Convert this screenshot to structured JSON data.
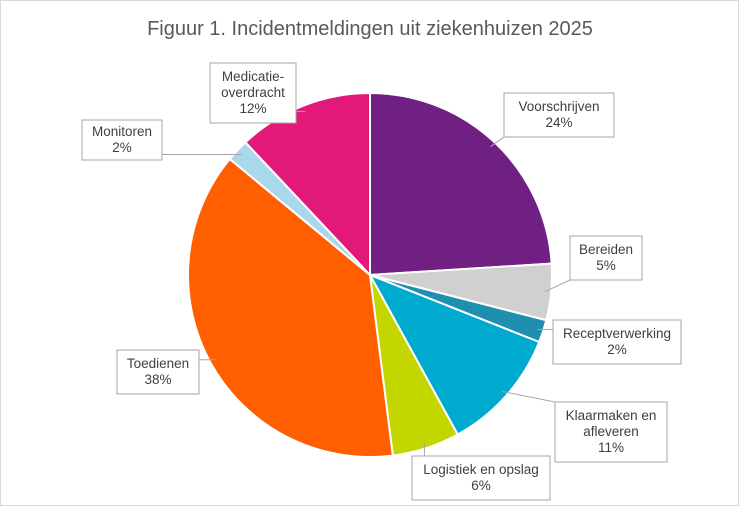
{
  "chart_data": {
    "type": "pie",
    "title": "Figuur 1. Incidentmeldingen uit ziekenhuizen 2025",
    "slices": [
      {
        "label": "Voorschrijven",
        "value": 24,
        "value_label": "24%",
        "color": "#702082"
      },
      {
        "label": "Bereiden",
        "value": 5,
        "value_label": "5%",
        "color": "#D0D0D0"
      },
      {
        "label": "Receptverwerking",
        "value": 2,
        "value_label": "2%",
        "color": "#1F8FB0"
      },
      {
        "label": "Klaarmaken en afleveren",
        "value": 11,
        "value_label": "11%",
        "color": "#00A9CE"
      },
      {
        "label": "Logistiek en opslag",
        "value": 6,
        "value_label": "6%",
        "color": "#C4D600"
      },
      {
        "label": "Toedienen",
        "value": 38,
        "value_label": "38%",
        "color": "#FF5F00"
      },
      {
        "label": "Monitoren",
        "value": 2,
        "value_label": "2%",
        "color": "#A8D8EA"
      },
      {
        "label": "Medicatie-overdracht",
        "value": 12,
        "value_label": "12%",
        "color": "#E3197A"
      }
    ]
  }
}
